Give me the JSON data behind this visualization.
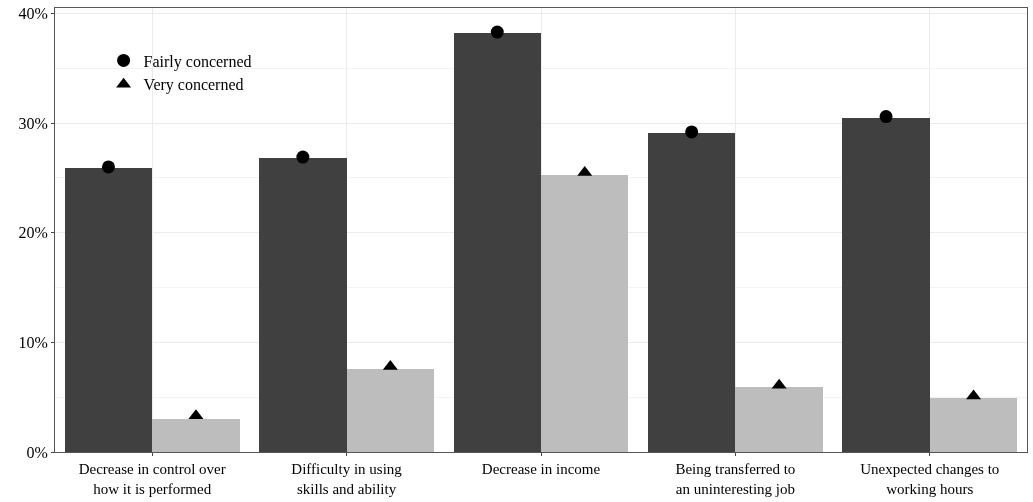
{
  "chart_data": {
    "type": "bar",
    "categories": [
      "Decrease in control over\nhow it is performed",
      "Difficulty in using\nskills and ability",
      "Decrease in income",
      "Being transferred to\nan uninteresting job",
      "Unexpected changes to\nworking hours"
    ],
    "series": [
      {
        "color": "#404040",
        "values": [
          25.9,
          26.8,
          38.2,
          29.1,
          30.5
        ]
      },
      {
        "color": "#bdbdbd",
        "values": [
          3.0,
          7.6,
          25.3,
          5.9,
          4.9
        ]
      },
      {
        "type": "scatter",
        "name": "Fairly concerned",
        "color": "#000000",
        "marker": "circle",
        "values": [
          26.0,
          26.9,
          38.3,
          29.2,
          30.6
        ]
      },
      {
        "type": "scatter",
        "name": "Very concerned",
        "color": "#000000",
        "marker": "triangle",
        "values": [
          3.3,
          7.8,
          25.5,
          6.1,
          5.1
        ]
      }
    ],
    "ylim": [
      0,
      40.5
    ],
    "yticks": [
      {
        "value": 0,
        "label": "0%"
      },
      {
        "value": 10,
        "label": "10%"
      },
      {
        "value": 20,
        "label": "20%"
      },
      {
        "value": 30,
        "label": "30%"
      },
      {
        "value": 40,
        "label": "40%"
      }
    ],
    "grid": true,
    "legend": "top left"
  }
}
